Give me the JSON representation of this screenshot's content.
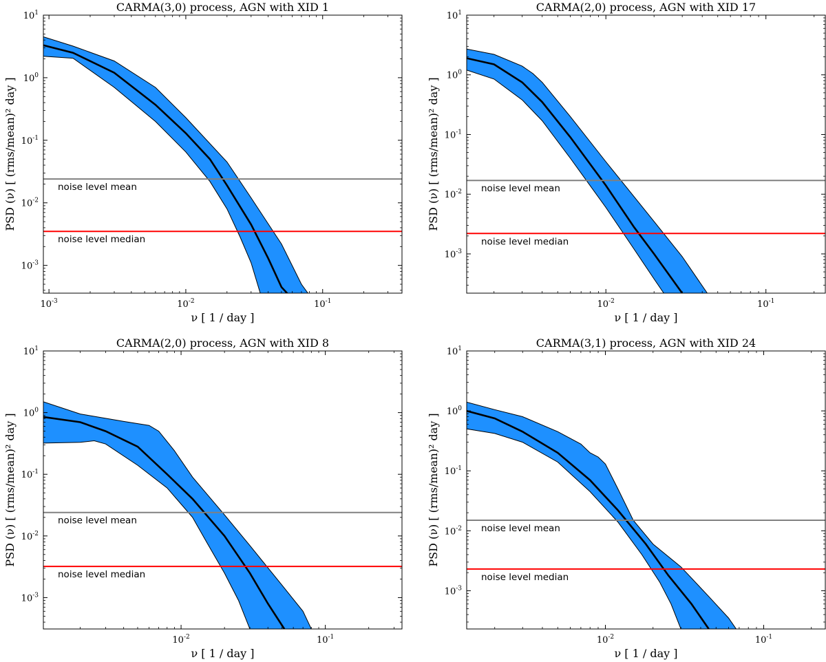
{
  "chart_data": [
    {
      "type": "area",
      "title": "CARMA(3,0) process, AGN with XID 1",
      "xlabel": "ν [ 1 / day ]",
      "ylabel": "PSD (ν) [ (rms/mean)² day ]",
      "xscale": "log",
      "yscale": "log",
      "xlim": [
        0.00091,
        0.38
      ],
      "ylim": [
        0.00036,
        10
      ],
      "xticks": [
        {
          "value": 0.001,
          "base": "10",
          "exp": "-3"
        },
        {
          "value": 0.01,
          "base": "10",
          "exp": "-2"
        },
        {
          "value": 0.1,
          "base": "10",
          "exp": "-1"
        }
      ],
      "yticks": [
        {
          "value": 0.001,
          "base": "10",
          "exp": "-3"
        },
        {
          "value": 0.01,
          "base": "10",
          "exp": "-2"
        },
        {
          "value": 0.1,
          "base": "10",
          "exp": "-1"
        },
        {
          "value": 1,
          "base": "10",
          "exp": "0"
        },
        {
          "value": 10,
          "base": "10",
          "exp": "1"
        }
      ],
      "band_color": "#1e90ff",
      "median_line": [
        [
          0.00091,
          3.3
        ],
        [
          0.0015,
          2.5
        ],
        [
          0.003,
          1.2
        ],
        [
          0.006,
          0.37
        ],
        [
          0.01,
          0.13
        ],
        [
          0.015,
          0.05
        ],
        [
          0.02,
          0.019
        ],
        [
          0.03,
          0.0045
        ],
        [
          0.04,
          0.0013
        ],
        [
          0.05,
          0.00045
        ],
        [
          0.055,
          0.00036
        ]
      ],
      "band_upper": [
        [
          0.00091,
          4.5
        ],
        [
          0.0015,
          3.2
        ],
        [
          0.003,
          1.85
        ],
        [
          0.006,
          0.7
        ],
        [
          0.01,
          0.23
        ],
        [
          0.02,
          0.045
        ],
        [
          0.03,
          0.012
        ],
        [
          0.05,
          0.0022
        ],
        [
          0.07,
          0.0005
        ],
        [
          0.078,
          0.00036
        ]
      ],
      "band_lower": [
        [
          0.00091,
          2.2
        ],
        [
          0.0015,
          2.05
        ],
        [
          0.003,
          0.7
        ],
        [
          0.006,
          0.2
        ],
        [
          0.01,
          0.065
        ],
        [
          0.015,
          0.022
        ],
        [
          0.02,
          0.008
        ],
        [
          0.025,
          0.0028
        ],
        [
          0.03,
          0.0011
        ],
        [
          0.035,
          0.00036
        ]
      ],
      "noise_mean": {
        "label": "noise level mean",
        "value": 0.024,
        "color": "#808080"
      },
      "noise_median": {
        "label": "noise level median",
        "value": 0.0035,
        "color": "#ff0000"
      }
    },
    {
      "type": "area",
      "title": "CARMA(2,0) process, AGN with XID 17",
      "xlabel": "ν [ 1 / day ]",
      "ylabel": "PSD (ν) [ (rms/mean)² day ]",
      "xscale": "log",
      "yscale": "log",
      "xlim": [
        0.00135,
        0.235
      ],
      "ylim": [
        0.00022,
        10
      ],
      "xticks": [
        {
          "value": 0.01,
          "base": "10",
          "exp": "-2"
        },
        {
          "value": 0.1,
          "base": "10",
          "exp": "-1"
        }
      ],
      "yticks": [
        {
          "value": 0.001,
          "base": "10",
          "exp": "-3"
        },
        {
          "value": 0.01,
          "base": "10",
          "exp": "-2"
        },
        {
          "value": 0.1,
          "base": "10",
          "exp": "-1"
        },
        {
          "value": 1,
          "base": "10",
          "exp": "0"
        },
        {
          "value": 10,
          "base": "10",
          "exp": "1"
        }
      ],
      "band_color": "#1e90ff",
      "median_line": [
        [
          0.00135,
          1.9
        ],
        [
          0.002,
          1.5
        ],
        [
          0.003,
          0.75
        ],
        [
          0.004,
          0.35
        ],
        [
          0.006,
          0.09
        ],
        [
          0.01,
          0.014
        ],
        [
          0.015,
          0.0028
        ],
        [
          0.02,
          0.001
        ],
        [
          0.03,
          0.00022
        ]
      ],
      "band_upper": [
        [
          0.00135,
          2.7
        ],
        [
          0.002,
          2.2
        ],
        [
          0.003,
          1.4
        ],
        [
          0.0035,
          1.05
        ],
        [
          0.004,
          0.75
        ],
        [
          0.006,
          0.2
        ],
        [
          0.01,
          0.035
        ],
        [
          0.02,
          0.0035
        ],
        [
          0.03,
          0.0009
        ],
        [
          0.043,
          0.00022
        ]
      ],
      "band_lower": [
        [
          0.00135,
          1.2
        ],
        [
          0.002,
          0.85
        ],
        [
          0.003,
          0.38
        ],
        [
          0.004,
          0.17
        ],
        [
          0.006,
          0.04
        ],
        [
          0.01,
          0.006
        ],
        [
          0.015,
          0.0012
        ],
        [
          0.02,
          0.00038
        ],
        [
          0.023,
          0.00022
        ]
      ],
      "noise_mean": {
        "label": "noise level mean",
        "value": 0.017,
        "color": "#808080"
      },
      "noise_median": {
        "label": "noise level median",
        "value": 0.0022,
        "color": "#ff0000"
      }
    },
    {
      "type": "area",
      "title": "CARMA(2,0) process, AGN with XID 8",
      "xlabel": "ν [ 1 / day ]",
      "ylabel": "PSD (ν) [ (rms/mean)² day ]",
      "xscale": "log",
      "yscale": "log",
      "xlim": [
        0.00111,
        0.34
      ],
      "ylim": [
        0.00031,
        10
      ],
      "xticks": [
        {
          "value": 0.01,
          "base": "10",
          "exp": "-2"
        },
        {
          "value": 0.1,
          "base": "10",
          "exp": "-1"
        }
      ],
      "yticks": [
        {
          "value": 0.001,
          "base": "10",
          "exp": "-3"
        },
        {
          "value": 0.01,
          "base": "10",
          "exp": "-2"
        },
        {
          "value": 0.1,
          "base": "10",
          "exp": "-1"
        },
        {
          "value": 1,
          "base": "10",
          "exp": "0"
        },
        {
          "value": 10,
          "base": "10",
          "exp": "1"
        }
      ],
      "band_color": "#1e90ff",
      "median_line": [
        [
          0.00111,
          0.85
        ],
        [
          0.002,
          0.7
        ],
        [
          0.003,
          0.5
        ],
        [
          0.005,
          0.28
        ],
        [
          0.008,
          0.1
        ],
        [
          0.012,
          0.04
        ],
        [
          0.02,
          0.01
        ],
        [
          0.03,
          0.0025
        ],
        [
          0.04,
          0.0008
        ],
        [
          0.052,
          0.00031
        ]
      ],
      "band_upper": [
        [
          0.00111,
          1.5
        ],
        [
          0.002,
          0.95
        ],
        [
          0.004,
          0.72
        ],
        [
          0.006,
          0.62
        ],
        [
          0.007,
          0.5
        ],
        [
          0.009,
          0.24
        ],
        [
          0.012,
          0.09
        ],
        [
          0.02,
          0.022
        ],
        [
          0.03,
          0.007
        ],
        [
          0.05,
          0.0016
        ],
        [
          0.07,
          0.0006
        ],
        [
          0.08,
          0.00031
        ]
      ],
      "band_lower": [
        [
          0.00111,
          0.32
        ],
        [
          0.002,
          0.33
        ],
        [
          0.0025,
          0.35
        ],
        [
          0.003,
          0.31
        ],
        [
          0.005,
          0.14
        ],
        [
          0.008,
          0.06
        ],
        [
          0.012,
          0.02
        ],
        [
          0.015,
          0.008
        ],
        [
          0.02,
          0.0025
        ],
        [
          0.025,
          0.0009
        ],
        [
          0.03,
          0.00031
        ]
      ],
      "noise_mean": {
        "label": "noise level mean",
        "value": 0.024,
        "color": "#808080"
      },
      "noise_median": {
        "label": "noise level median",
        "value": 0.0032,
        "color": "#ff0000"
      }
    },
    {
      "type": "area",
      "title": "CARMA(3,1) process, AGN with XID 24",
      "xlabel": "ν [ 1 / day ]",
      "ylabel": "PSD (ν) [ (rms/mean)² day ]",
      "xscale": "log",
      "yscale": "log",
      "xlim": [
        0.00133,
        0.245
      ],
      "ylim": [
        0.00023,
        10
      ],
      "xticks": [
        {
          "value": 0.01,
          "base": "10",
          "exp": "-2"
        },
        {
          "value": 0.1,
          "base": "10",
          "exp": "-1"
        }
      ],
      "yticks": [
        {
          "value": 0.001,
          "base": "10",
          "exp": "-3"
        },
        {
          "value": 0.01,
          "base": "10",
          "exp": "-2"
        },
        {
          "value": 0.1,
          "base": "10",
          "exp": "-1"
        },
        {
          "value": 1,
          "base": "10",
          "exp": "0"
        },
        {
          "value": 10,
          "base": "10",
          "exp": "1"
        }
      ],
      "band_color": "#1e90ff",
      "median_line": [
        [
          0.00133,
          1.0
        ],
        [
          0.002,
          0.75
        ],
        [
          0.003,
          0.45
        ],
        [
          0.005,
          0.2
        ],
        [
          0.008,
          0.07
        ],
        [
          0.012,
          0.022
        ],
        [
          0.018,
          0.006
        ],
        [
          0.025,
          0.0018
        ],
        [
          0.035,
          0.0006
        ],
        [
          0.045,
          0.00023
        ]
      ],
      "band_upper": [
        [
          0.00133,
          1.4
        ],
        [
          0.002,
          1.05
        ],
        [
          0.003,
          0.8
        ],
        [
          0.005,
          0.45
        ],
        [
          0.007,
          0.28
        ],
        [
          0.008,
          0.2
        ],
        [
          0.009,
          0.17
        ],
        [
          0.01,
          0.13
        ],
        [
          0.012,
          0.05
        ],
        [
          0.015,
          0.015
        ],
        [
          0.02,
          0.006
        ],
        [
          0.03,
          0.0025
        ],
        [
          0.045,
          0.0008
        ],
        [
          0.06,
          0.00035
        ],
        [
          0.067,
          0.00023
        ]
      ],
      "band_lower": [
        [
          0.00133,
          0.5
        ],
        [
          0.002,
          0.42
        ],
        [
          0.003,
          0.3
        ],
        [
          0.005,
          0.14
        ],
        [
          0.008,
          0.045
        ],
        [
          0.012,
          0.014
        ],
        [
          0.017,
          0.004
        ],
        [
          0.022,
          0.0014
        ],
        [
          0.026,
          0.0006
        ],
        [
          0.03,
          0.00023
        ]
      ],
      "noise_mean": {
        "label": "noise level mean",
        "value": 0.015,
        "color": "#808080"
      },
      "noise_median": {
        "label": "noise level median",
        "value": 0.0023,
        "color": "#ff0000"
      }
    }
  ]
}
